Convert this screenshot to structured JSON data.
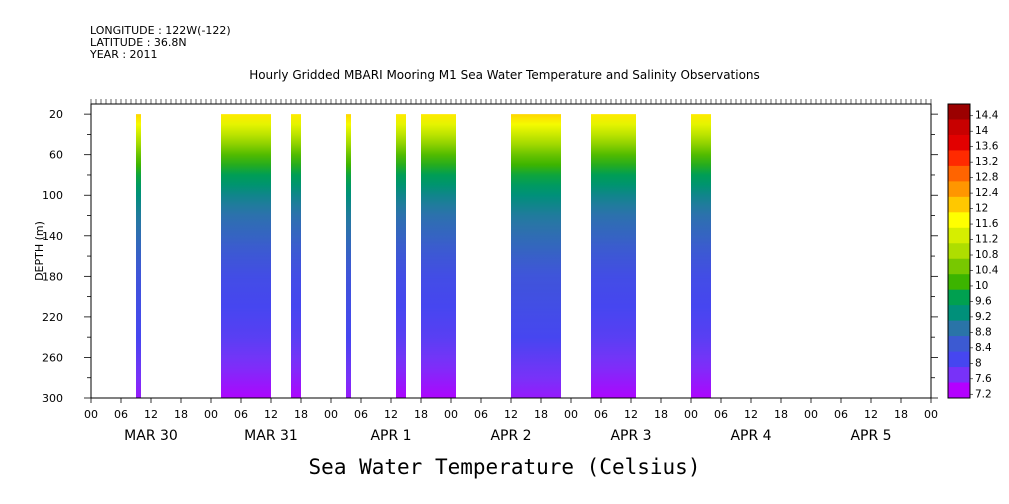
{
  "header": {
    "longitude": "LONGITUDE : 122W(-122)",
    "latitude": "LATITUDE : 36.8N",
    "year": "YEAR : 2011"
  },
  "chart_data": {
    "type": "heatmap",
    "title": "Hourly Gridded MBARI Mooring M1 Sea Water Temperature and Salinity Observations",
    "bottom_title": "Sea Water Temperature (Celsius)",
    "ylabel": "DEPTH (m)",
    "xlabel": "",
    "ylim": [
      300,
      10
    ],
    "y_ticks": [
      20,
      60,
      100,
      140,
      180,
      220,
      260,
      300
    ],
    "x_hour_ticks": [
      "00",
      "06",
      "12",
      "18",
      "00",
      "06",
      "12",
      "18",
      "00",
      "06",
      "12",
      "18",
      "00",
      "06",
      "12",
      "18",
      "00",
      "06",
      "12",
      "18",
      "00",
      "06",
      "12",
      "18",
      "00",
      "06",
      "12",
      "18",
      "00"
    ],
    "days": [
      "MAR 30",
      "MAR 31",
      "APR 1",
      "APR 2",
      "APR 3",
      "APR 4",
      "APR 5"
    ],
    "colorbar_labels": [
      "14.4",
      "14",
      "13.6",
      "13.2",
      "12.8",
      "12.4",
      "12",
      "11.6",
      "11.2",
      "10.8",
      "10.4",
      "10",
      "9.6",
      "9.2",
      "8.8",
      "8.4",
      "8",
      "7.6",
      "7.2"
    ],
    "colorbar_range": [
      7.2,
      14.6
    ],
    "colors": {
      "c_14_4": "#9b0000",
      "c_14": "#c80000",
      "c_13_6": "#e20000",
      "c_13_2": "#ff2a00",
      "c_12_8": "#ff6400",
      "c_12_4": "#ff9600",
      "c_12": "#ffc800",
      "c_11_6": "#ffff00",
      "c_11_2": "#d6ee00",
      "c_10_8": "#aede00",
      "c_10_4": "#78c800",
      "c_10": "#3cb400",
      "c_9_6": "#00a050",
      "c_9_2": "#00907a",
      "c_8_8": "#2a74a8",
      "c_8_4": "#3c5ad2",
      "c_8": "#4646f0",
      "c_7_6": "#7832f8",
      "c_7_2": "#b400ff"
    },
    "data_segments_hours": [
      {
        "start": 9,
        "end": 10
      },
      {
        "start": 26,
        "end": 36
      },
      {
        "start": 40,
        "end": 42
      },
      {
        "start": 51,
        "end": 52
      },
      {
        "start": 61,
        "end": 63
      },
      {
        "start": 66,
        "end": 73
      },
      {
        "start": 84,
        "end": 94
      },
      {
        "start": 100,
        "end": 109
      },
      {
        "start": 120,
        "end": 124
      }
    ],
    "profile_depths": [
      20,
      40,
      60,
      80,
      100,
      120,
      140,
      160,
      180,
      200,
      220,
      240,
      260,
      280,
      300
    ],
    "profile_temps": [
      11.8,
      11.0,
      10.2,
      9.6,
      9.1,
      8.8,
      8.6,
      8.4,
      8.2,
      8.1,
      8.0,
      7.9,
      7.7,
      7.5,
      7.3
    ]
  }
}
